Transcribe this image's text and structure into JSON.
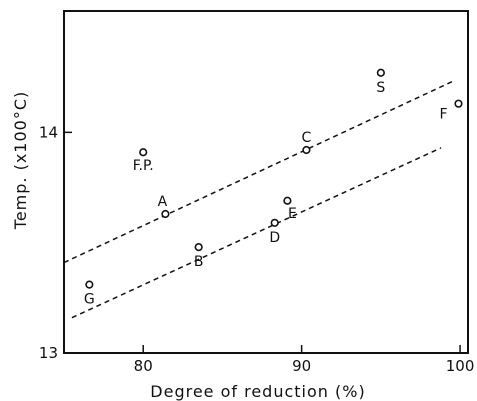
{
  "chart_data": {
    "type": "scatter",
    "title": "",
    "xlabel": "Degree of reduction (%)",
    "ylabel": "Temp. (x100°C)",
    "xlim": [
      75,
      100.5
    ],
    "ylim": [
      13,
      14.55
    ],
    "x_ticks": [
      80,
      90,
      100
    ],
    "x_tick_labels": [
      "80",
      "90",
      "100"
    ],
    "y_ticks": [
      13,
      14
    ],
    "y_tick_labels": [
      "13",
      "14"
    ],
    "grid": false,
    "points": [
      {
        "label": "F.P.",
        "x": 80.0,
        "y": 13.91
      },
      {
        "label": "A",
        "x": 81.4,
        "y": 13.63
      },
      {
        "label": "B",
        "x": 83.5,
        "y": 13.48
      },
      {
        "label": "C",
        "x": 90.3,
        "y": 13.92
      },
      {
        "label": "D",
        "x": 88.3,
        "y": 13.59
      },
      {
        "label": "E",
        "x": 89.1,
        "y": 13.69
      },
      {
        "label": "G",
        "x": 76.6,
        "y": 13.31
      },
      {
        "label": "S",
        "x": 95.0,
        "y": 14.27
      },
      {
        "label": "F",
        "x": 99.9,
        "y": 14.13
      }
    ],
    "trend_lines": [
      {
        "style": "dashed",
        "x": [
          75,
          99.5
        ],
        "y": [
          13.41,
          14.23
        ]
      },
      {
        "style": "dashed",
        "x": [
          75.5,
          98.8
        ],
        "y": [
          13.16,
          13.93
        ]
      }
    ]
  }
}
